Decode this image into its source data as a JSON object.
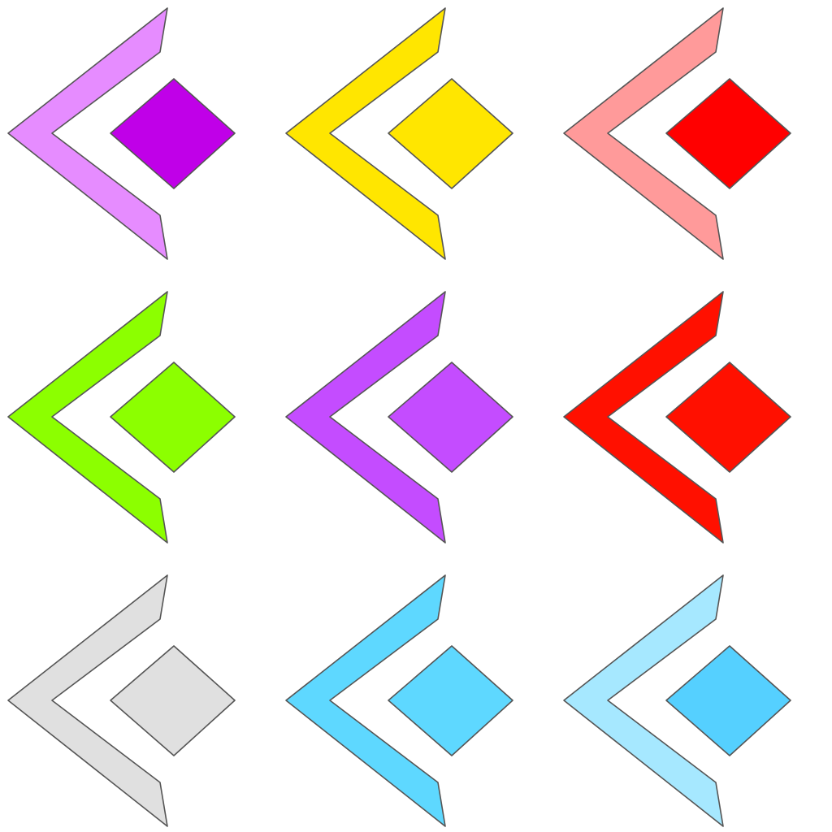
{
  "grid": {
    "rows": 3,
    "columns": 3
  },
  "icons": [
    {
      "name": "back-arrow-diamond-icon-violet",
      "chevron_color": "#e68cff",
      "diamond_color": "#c000e8"
    },
    {
      "name": "back-arrow-diamond-icon-yellow",
      "chevron_color": "#ffe600",
      "diamond_color": "#ffe600"
    },
    {
      "name": "back-arrow-diamond-icon-pink-red",
      "chevron_color": "#ff9a9a",
      "diamond_color": "#ff0000"
    },
    {
      "name": "back-arrow-diamond-icon-lime",
      "chevron_color": "#8cff00",
      "diamond_color": "#8cff00"
    },
    {
      "name": "back-arrow-diamond-icon-purple",
      "chevron_color": "#c44cff",
      "diamond_color": "#c44cff"
    },
    {
      "name": "back-arrow-diamond-icon-red",
      "chevron_color": "#ff1000",
      "diamond_color": "#ff1000"
    },
    {
      "name": "back-arrow-diamond-icon-gray",
      "chevron_color": "#e0e0e0",
      "diamond_color": "#e0e0e0"
    },
    {
      "name": "back-arrow-diamond-icon-cyan",
      "chevron_color": "#5ed8ff",
      "diamond_color": "#5ed8ff"
    },
    {
      "name": "back-arrow-diamond-icon-light-blue",
      "chevron_color": "#a6e8ff",
      "diamond_color": "#55d0ff"
    }
  ]
}
